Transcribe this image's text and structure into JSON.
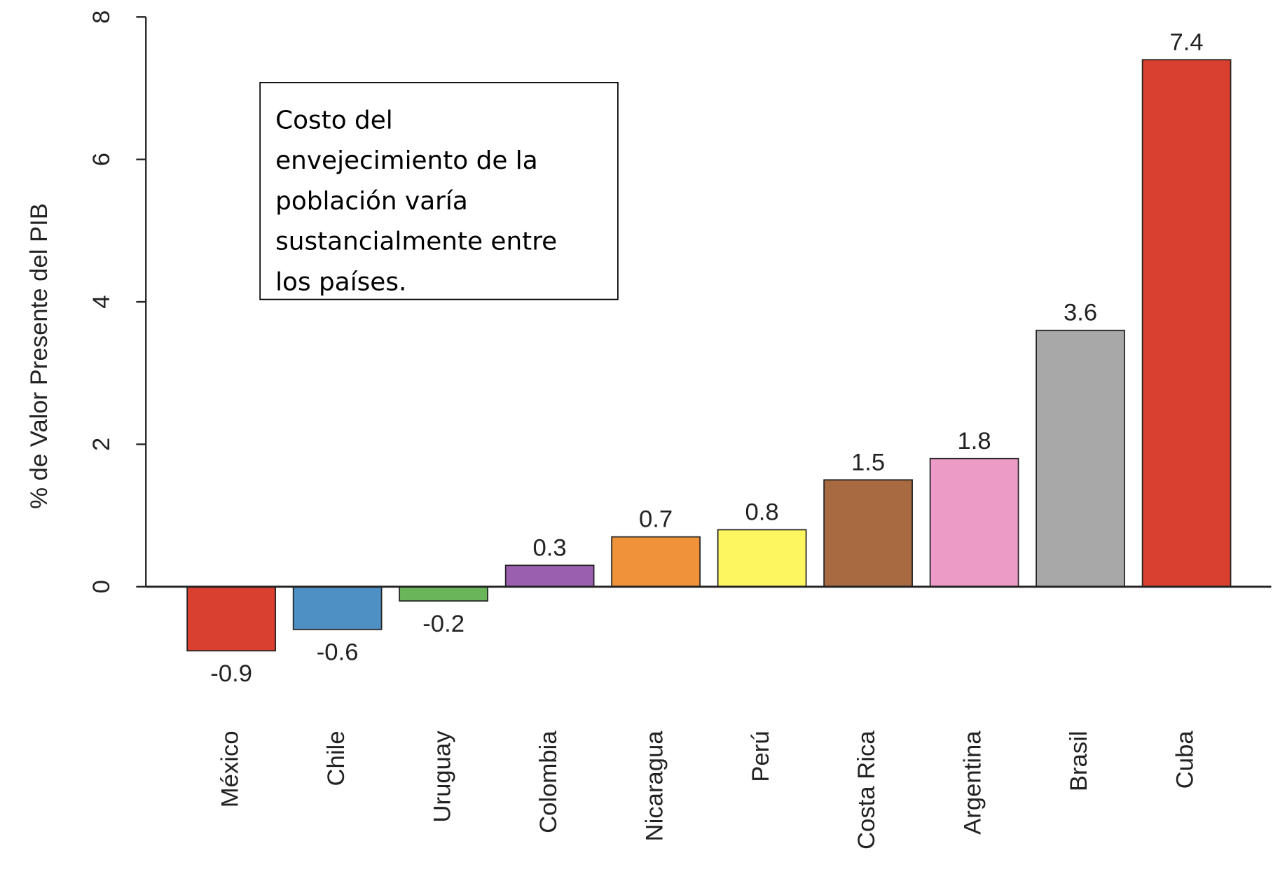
{
  "chart_data": {
    "type": "bar",
    "ylabel": "% de Valor Presente del PIB",
    "annotation": [
      "Costo del",
      "envejecimiento de la",
      "población varía",
      "sustancialmente entre",
      "los países."
    ],
    "categories": [
      "México",
      "Chile",
      "Uruguay",
      "Colombia",
      "Nicaragua",
      "Perú",
      "Costa Rica",
      "Argentina",
      "Brasil",
      "Cuba"
    ],
    "values": [
      -0.9,
      -0.6,
      -0.2,
      0.3,
      0.7,
      0.8,
      1.5,
      1.8,
      3.6,
      7.4
    ],
    "colors": [
      "#d94030",
      "#4f90c4",
      "#6ab55a",
      "#9b5fb0",
      "#f0923a",
      "#fdf661",
      "#a86a40",
      "#ec9ac6",
      "#a8a8a8",
      "#d94030"
    ],
    "ylim": [
      -1,
      8
    ],
    "yticks": [
      0,
      2,
      4,
      6,
      8
    ],
    "grid": false
  }
}
